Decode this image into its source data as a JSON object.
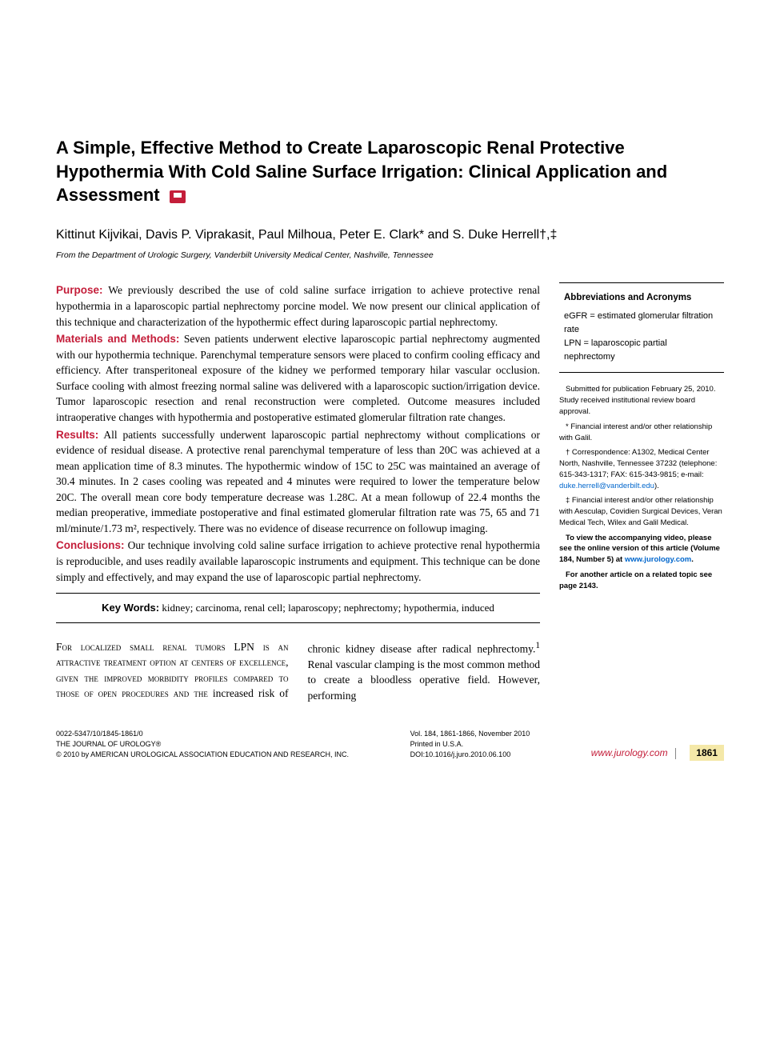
{
  "title": "A Simple, Effective Method to Create Laparoscopic Renal Protective Hypothermia With Cold Saline Surface Irrigation: Clinical Application and Assessment",
  "authors": "Kittinut Kijvikai, Davis P. Viprakasit, Paul Milhoua, Peter E. Clark* and S. Duke Herrell†,‡",
  "affiliation": "From the Department of Urologic Surgery, Vanderbilt University Medical Center, Nashville, Tennessee",
  "abstract": {
    "purpose_label": "Purpose:",
    "purpose": "We previously described the use of cold saline surface irrigation to achieve protective renal hypothermia in a laparoscopic partial nephrectomy porcine model. We now present our clinical application of this technique and characterization of the hypothermic effect during laparoscopic partial nephrectomy.",
    "methods_label": "Materials and Methods:",
    "methods": "Seven patients underwent elective laparoscopic partial nephrectomy augmented with our hypothermia technique. Parenchymal temperature sensors were placed to confirm cooling efficacy and efficiency. After transperitoneal exposure of the kidney we performed temporary hilar vascular occlusion. Surface cooling with almost freezing normal saline was delivered with a laparoscopic suction/irrigation device. Tumor laparoscopic resection and renal reconstruction were completed. Outcome measures included intraoperative changes with hypothermia and postoperative estimated glomerular filtration rate changes.",
    "results_label": "Results:",
    "results": "All patients successfully underwent laparoscopic partial nephrectomy without complications or evidence of residual disease. A protective renal parenchymal temperature of less than 20C was achieved at a mean application time of 8.3 minutes. The hypothermic window of 15C to 25C was maintained an average of 30.4 minutes. In 2 cases cooling was repeated and 4 minutes were required to lower the temperature below 20C. The overall mean core body temperature decrease was 1.28C. At a mean followup of 22.4 months the median preoperative, immediate postoperative and final estimated glomerular filtration rate was 75, 65 and 71 ml/minute/1.73 m², respectively. There was no evidence of disease recurrence on followup imaging.",
    "conclusions_label": "Conclusions:",
    "conclusions": "Our technique involving cold saline surface irrigation to achieve protective renal hypothermia is reproducible, and uses readily available laparoscopic instruments and equipment. This technique can be done simply and effectively, and may expand the use of laparoscopic partial nephrectomy."
  },
  "keywords": {
    "label": "Key Words:",
    "text": "kidney; carcinoma, renal cell; laparoscopy; nephrectomy; hypothermia, induced"
  },
  "sidebar": {
    "abbrev_heading": "Abbreviations and Acronyms",
    "abbrev_1": "eGFR = estimated glomerular filtration rate",
    "abbrev_2": "LPN = laparoscopic partial nephrectomy",
    "note_submitted": "Submitted for publication February 25, 2010. Study received institutional review board approval.",
    "note_star": "* Financial interest and/or other relationship with Galil.",
    "note_dagger_pre": "† Correspondence: A1302, Medical Center North, Nashville, Tennessee 37232 (telephone: 615-343-1317; FAX: 615-343-9815; e-mail: ",
    "note_dagger_email": "duke.herrell@vanderbilt.edu",
    "note_dagger_post": ").",
    "note_ddagger": "‡ Financial interest and/or other relationship with Aesculap, Covidien Surgical Devices, Veran Medical Tech, Wilex and Galil Medical.",
    "video_note_pre": "To view the accompanying video, please see the online version of this article (Volume 184, Number 5) at ",
    "video_note_link": "www.jurology.com",
    "video_note_post": ".",
    "related_note": "For another article on a related topic see page 2143."
  },
  "body": {
    "col1": "For localized small renal tumors LPN is an attractive treatment option at centers of excellence, given the improved morbidity profiles compared to those of open procedures and the",
    "col2_pre": "increased risk of chronic kidney disease after radical nephrectomy.",
    "col2_sup": "1",
    "col2_post": " Renal vascular clamping is the most common method to create a bloodless operative field. However, performing"
  },
  "footer": {
    "left_line1": "0022-5347/10/1845-1861/0",
    "left_line2": "THE JOURNAL OF UROLOGY®",
    "left_line3": "© 2010 by AMERICAN UROLOGICAL ASSOCIATION EDUCATION AND RESEARCH, INC.",
    "mid_line1": "Vol. 184, 1861-1866, November 2010",
    "mid_line2": "Printed in U.S.A.",
    "mid_line3": "DOI:10.1016/j.juro.2010.06.100",
    "url": "www.jurology.com",
    "page": "1861"
  },
  "colors": {
    "accent": "#c41e3a",
    "link": "#0066cc",
    "highlight": "#f4e8a8"
  }
}
